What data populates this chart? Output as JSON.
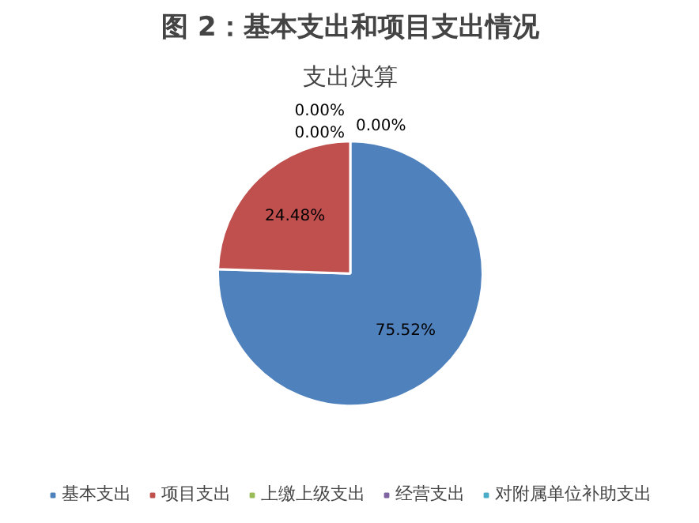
{
  "chart_data": {
    "type": "pie",
    "title": "图 2：基本支出和项目支出情况",
    "subtitle": "支出决算",
    "categories": [
      "基本支出",
      "项目支出",
      "上缴上级支出",
      "经营支出",
      "对附属单位补助支出"
    ],
    "values": [
      75.52,
      24.48,
      0,
      0,
      0
    ],
    "value_labels": [
      "75.52%",
      "24.48%",
      "0.00%",
      "0.00%",
      "0.00%"
    ],
    "colors": [
      "#4f81bd",
      "#c0504d",
      "#9bbb59",
      "#8064a2",
      "#4bacc6"
    ],
    "legend": "bottom"
  }
}
